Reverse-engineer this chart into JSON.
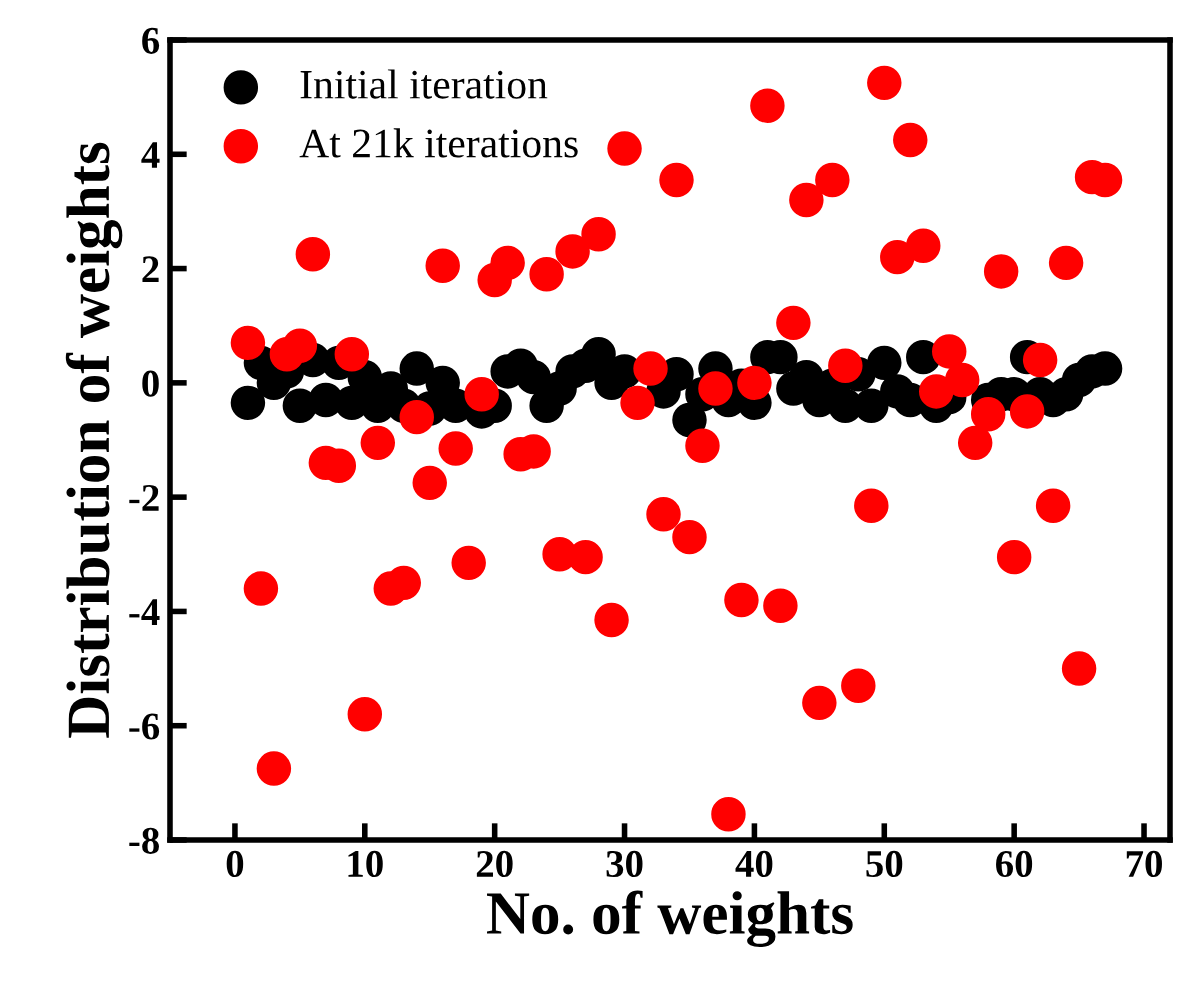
{
  "chart_data": {
    "type": "scatter",
    "xlabel": "No. of weights",
    "ylabel": "Distribution of weights",
    "x": [
      1,
      2,
      3,
      4,
      5,
      6,
      7,
      8,
      9,
      10,
      11,
      12,
      13,
      14,
      15,
      16,
      17,
      18,
      19,
      20,
      21,
      22,
      23,
      24,
      25,
      26,
      27,
      28,
      29,
      30,
      31,
      32,
      33,
      34,
      35,
      36,
      37,
      38,
      39,
      40,
      41,
      42,
      43,
      44,
      45,
      46,
      47,
      48,
      49,
      50,
      51,
      52,
      53,
      54,
      55,
      56,
      57,
      58,
      59,
      60,
      61,
      62,
      63,
      64,
      65,
      66,
      67
    ],
    "series": [
      {
        "name": "Initial iteration",
        "color": "#000000",
        "values": [
          -0.35,
          0.35,
          0.0,
          0.2,
          -0.4,
          0.4,
          -0.3,
          0.35,
          -0.35,
          0.1,
          -0.4,
          -0.1,
          -0.4,
          0.25,
          -0.45,
          0.0,
          -0.4,
          null,
          -0.5,
          -0.4,
          0.2,
          0.3,
          0.1,
          -0.4,
          -0.1,
          0.2,
          0.3,
          0.5,
          0.0,
          0.2,
          null,
          null,
          -0.15,
          0.15,
          -0.65,
          -0.2,
          0.25,
          -0.3,
          -0.05,
          -0.35,
          0.45,
          0.45,
          -0.1,
          0.1,
          -0.3,
          -0.05,
          -0.4,
          0.15,
          -0.4,
          0.35,
          -0.15,
          -0.3,
          0.45,
          -0.4,
          -0.25,
          null,
          null,
          -0.3,
          -0.2,
          -0.2,
          0.45,
          -0.2,
          -0.3,
          -0.2,
          0.05,
          0.2,
          0.25
        ]
      },
      {
        "name": "At 21k iterations",
        "color": "#ff0000",
        "values": [
          0.7,
          -3.6,
          -6.75,
          0.5,
          0.65,
          2.25,
          -1.4,
          -1.45,
          0.5,
          -5.8,
          -1.05,
          -3.6,
          -3.5,
          -0.6,
          -1.75,
          2.05,
          -1.15,
          -3.15,
          -0.2,
          1.8,
          2.1,
          -1.25,
          -1.2,
          1.9,
          -3.0,
          2.3,
          -3.05,
          2.6,
          -4.15,
          4.1,
          -0.35,
          0.25,
          -2.3,
          3.55,
          -2.7,
          -1.1,
          -0.1,
          -7.55,
          -3.8,
          0.0,
          4.85,
          -3.9,
          1.05,
          3.2,
          -5.6,
          3.55,
          0.3,
          -5.3,
          -2.15,
          5.25,
          2.2,
          4.25,
          2.4,
          -0.15,
          0.55,
          0.05,
          -1.05,
          -0.55,
          1.95,
          -3.05,
          -0.5,
          0.4,
          -2.15,
          2.1,
          -5.0,
          3.6,
          3.55
        ]
      }
    ],
    "xlim": [
      -5,
      72
    ],
    "xticks": [
      0,
      10,
      20,
      30,
      40,
      50,
      60,
      70
    ],
    "ylim": [
      -8,
      6
    ],
    "yticks": [
      -8,
      -6,
      -4,
      -2,
      0,
      2,
      4,
      6
    ],
    "marker": "circle",
    "legend": "top left",
    "grid": false
  }
}
